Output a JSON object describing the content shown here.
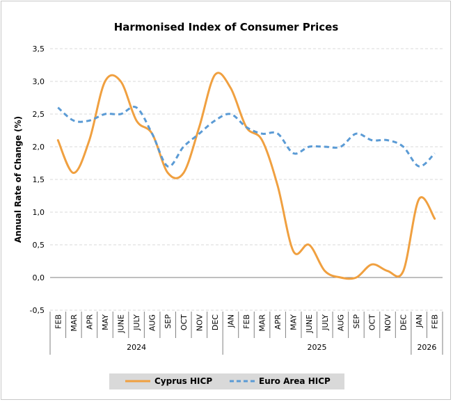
{
  "chart_data": {
    "type": "line",
    "title": "Harmonised Index of Consumer Prices",
    "ylabel": "Annual Rate of Change (%)",
    "xlabel": "",
    "ylim": [
      -0.5,
      3.5
    ],
    "yticks": [
      "-0,5",
      "0,0",
      "0,5",
      "1,0",
      "1,5",
      "2,0",
      "2,5",
      "3,0",
      "3,5"
    ],
    "ytick_values": [
      -0.5,
      0,
      0.5,
      1,
      1.5,
      2,
      2.5,
      3,
      3.5
    ],
    "grid": true,
    "legend_position": "bottom",
    "categories": [
      "FEB",
      "MAR",
      "APR",
      "MAY",
      "JUNE",
      "JULY",
      "AUG",
      "SEP",
      "OCT",
      "NOV",
      "DEC",
      "JAN",
      "FEB",
      "MAR",
      "APR",
      "MAY",
      "JUNE",
      "JULY",
      "AUG",
      "SEP",
      "OCT",
      "NOV",
      "DEC",
      "JAN",
      "FEB"
    ],
    "year_groups": [
      {
        "label": "2024",
        "start": 0,
        "end": 10
      },
      {
        "label": "2025",
        "start": 11,
        "end": 22
      },
      {
        "label": "2026",
        "start": 23,
        "end": 24
      }
    ],
    "series": [
      {
        "name": "Cyprus HICP",
        "color": "#f0a040",
        "style": "solid",
        "values": [
          2.1,
          1.6,
          2.1,
          3.0,
          3.0,
          2.4,
          2.2,
          1.6,
          1.6,
          2.3,
          3.1,
          2.9,
          2.3,
          2.1,
          1.4,
          0.4,
          0.5,
          0.1,
          0.0,
          0.0,
          0.2,
          0.1,
          0.1,
          1.2,
          0.9
        ]
      },
      {
        "name": "Euro Area HICP",
        "color": "#5b9bd5",
        "style": "dashed",
        "values": [
          2.6,
          2.4,
          2.4,
          2.5,
          2.5,
          2.6,
          2.2,
          1.7,
          2.0,
          2.2,
          2.4,
          2.5,
          2.3,
          2.2,
          2.2,
          1.9,
          2.0,
          2.0,
          2.0,
          2.2,
          2.1,
          2.1,
          2.0,
          1.7,
          1.9
        ]
      }
    ]
  }
}
